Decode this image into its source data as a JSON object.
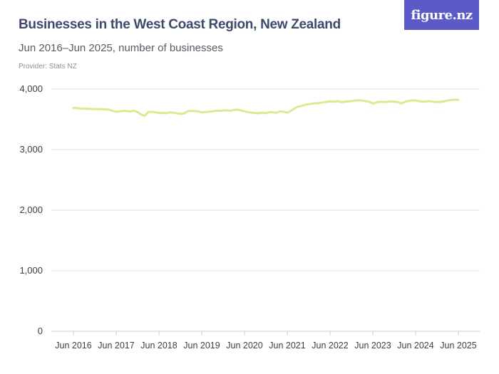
{
  "header": {
    "title": "Businesses in the West Coast Region, New Zealand",
    "subtitle": "Jun 2016–Jun 2025, number of businesses",
    "provider": "Provider: Stats NZ"
  },
  "logo": {
    "text": "figure.nz",
    "color": "#5b5bc7"
  },
  "chart_data": {
    "type": "line",
    "title": "Businesses in the West Coast Region, New Zealand",
    "subtitle": "Jun 2016–Jun 2025, number of businesses",
    "xlabel": "",
    "ylabel": "",
    "ylim": [
      0,
      4000
    ],
    "yticks": [
      0,
      1000,
      2000,
      3000,
      4000
    ],
    "ytick_labels": [
      "0",
      "1,000",
      "2,000",
      "3,000",
      "4,000"
    ],
    "xtick_labels": [
      "Jun 2016",
      "Jun 2017",
      "Jun 2018",
      "Jun 2019",
      "Jun 2020",
      "Jun 2021",
      "Jun 2022",
      "Jun 2023",
      "Jun 2024",
      "Jun 2025"
    ],
    "grid": true,
    "legend": "none",
    "line_color": "#d4ed91",
    "x": [
      "2016-06",
      "2016-07",
      "2016-08",
      "2016-09",
      "2016-10",
      "2016-11",
      "2016-12",
      "2017-01",
      "2017-02",
      "2017-03",
      "2017-04",
      "2017-05",
      "2017-06",
      "2017-07",
      "2017-08",
      "2017-09",
      "2017-10",
      "2017-11",
      "2017-12",
      "2018-01",
      "2018-02",
      "2018-03",
      "2018-04",
      "2018-05",
      "2018-06",
      "2018-07",
      "2018-08",
      "2018-09",
      "2018-10",
      "2018-11",
      "2018-12",
      "2019-01",
      "2019-02",
      "2019-03",
      "2019-04",
      "2019-05",
      "2019-06",
      "2019-07",
      "2019-08",
      "2019-09",
      "2019-10",
      "2019-11",
      "2019-12",
      "2020-01",
      "2020-02",
      "2020-03",
      "2020-04",
      "2020-05",
      "2020-06",
      "2020-07",
      "2020-08",
      "2020-09",
      "2020-10",
      "2020-11",
      "2020-12",
      "2021-01",
      "2021-02",
      "2021-03",
      "2021-04",
      "2021-05",
      "2021-06",
      "2021-07",
      "2021-08",
      "2021-09",
      "2021-10",
      "2021-11",
      "2021-12",
      "2022-01",
      "2022-02",
      "2022-03",
      "2022-04",
      "2022-05",
      "2022-06",
      "2022-07",
      "2022-08",
      "2022-09",
      "2022-10",
      "2022-11",
      "2022-12",
      "2023-01",
      "2023-02",
      "2023-03",
      "2023-04",
      "2023-05",
      "2023-06",
      "2023-07",
      "2023-08",
      "2023-09",
      "2023-10",
      "2023-11",
      "2023-12",
      "2024-01",
      "2024-02",
      "2024-03",
      "2024-04",
      "2024-05",
      "2024-06",
      "2024-07",
      "2024-08",
      "2024-09",
      "2024-10",
      "2024-11",
      "2024-12",
      "2025-01",
      "2025-02",
      "2025-03",
      "2025-04",
      "2025-05",
      "2025-06"
    ],
    "series": [
      {
        "values": [
          3690,
          3685,
          3680,
          3675,
          3675,
          3670,
          3672,
          3670,
          3668,
          3665,
          3660,
          3640,
          3625,
          3630,
          3640,
          3635,
          3630,
          3640,
          3620,
          3580,
          3560,
          3620,
          3625,
          3615,
          3610,
          3605,
          3600,
          3615,
          3610,
          3600,
          3590,
          3595,
          3630,
          3640,
          3635,
          3630,
          3615,
          3620,
          3625,
          3630,
          3640,
          3640,
          3645,
          3650,
          3640,
          3655,
          3660,
          3650,
          3630,
          3620,
          3610,
          3605,
          3600,
          3610,
          3600,
          3620,
          3615,
          3610,
          3630,
          3625,
          3610,
          3640,
          3680,
          3710,
          3720,
          3740,
          3750,
          3760,
          3765,
          3770,
          3780,
          3790,
          3795,
          3790,
          3800,
          3785,
          3790,
          3795,
          3800,
          3810,
          3815,
          3810,
          3800,
          3790,
          3760,
          3780,
          3790,
          3785,
          3790,
          3795,
          3790,
          3785,
          3760,
          3790,
          3800,
          3815,
          3810,
          3800,
          3790,
          3795,
          3800,
          3790,
          3785,
          3790,
          3795,
          3810,
          3820,
          3825,
          3820
        ]
      }
    ]
  }
}
